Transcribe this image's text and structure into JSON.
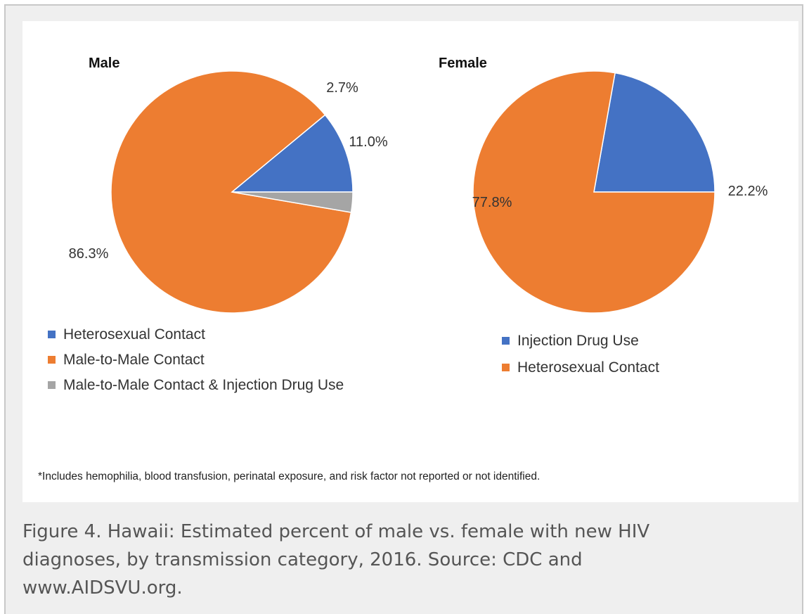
{
  "caption": "Figure 4. Hawaii: Estimated percent of male vs. female with new HIV diagnoses, by transmission category, 2016. Source: CDC and www.AIDSVU.org.",
  "footnote": "*Includes hemophilia, blood transfusion, perinatal exposure, and risk factor not reported or not identified.",
  "colors": {
    "blue": "#4472c4",
    "orange": "#ed7d31",
    "gray": "#a5a5a5",
    "frame_bg": "#efefef",
    "caption_text": "#555555"
  },
  "chart_data": [
    {
      "type": "pie",
      "title": "Male",
      "slices": [
        {
          "label": "Heterosexual Contact",
          "value": 11.0,
          "value_label": "11.0%",
          "color": "#4472c4"
        },
        {
          "label": "Male-to-Male Contact",
          "value": 86.3,
          "value_label": "86.3%",
          "color": "#ed7d31"
        },
        {
          "label": "Male-to-Male Contact & Injection Drug Use",
          "value": 2.7,
          "value_label": "2.7%",
          "color": "#a5a5a5"
        }
      ],
      "legend_position": "bottom-left"
    },
    {
      "type": "pie",
      "title": "Female",
      "slices": [
        {
          "label": "Injection Drug Use",
          "value": 22.2,
          "value_label": "22.2%",
          "color": "#4472c4"
        },
        {
          "label": "Heterosexual Contact",
          "value": 77.8,
          "value_label": "77.8%",
          "color": "#ed7d31"
        }
      ],
      "legend_position": "bottom-left"
    }
  ]
}
